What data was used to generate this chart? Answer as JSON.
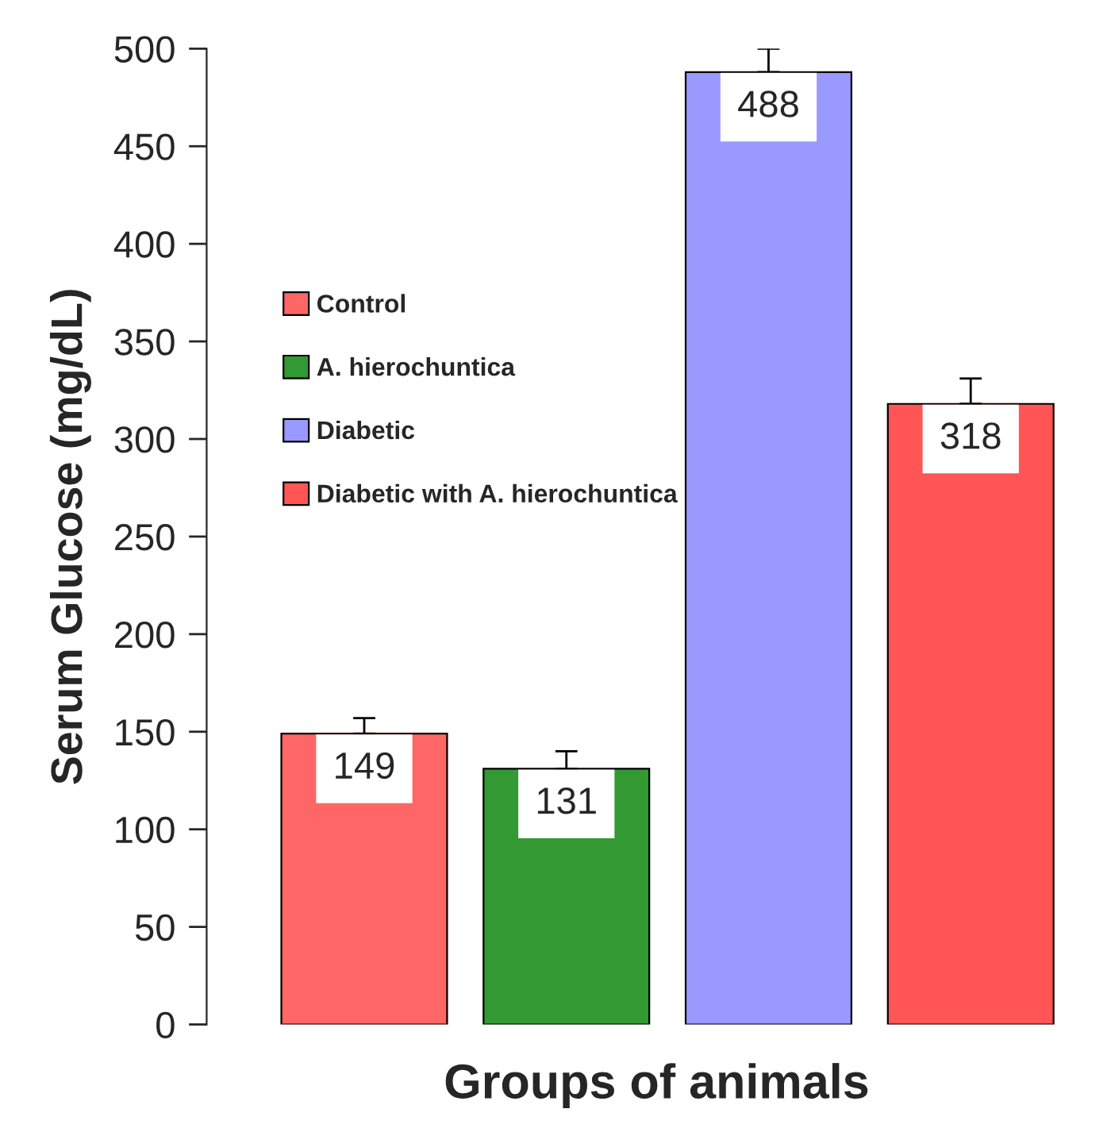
{
  "chart_data": {
    "type": "bar",
    "xlabel": "Groups of animals",
    "ylabel": "Serum Glucose (mg/dL)",
    "categories": [
      null
    ],
    "series": [
      {
        "name": "Control",
        "color": "#ff6666",
        "values": [
          149
        ],
        "errors": [
          [
            149,
            157
          ]
        ]
      },
      {
        "name": "A. hierochuntica",
        "color": "#339933",
        "values": [
          131
        ],
        "errors": [
          [
            131,
            140
          ]
        ]
      },
      {
        "name": "Diabetic",
        "color": "#9999ff",
        "values": [
          488
        ],
        "errors": [
          [
            488,
            500
          ]
        ]
      },
      {
        "name": "Diabetic with A. hierochuntica",
        "color": "#ff5555",
        "values": [
          318
        ],
        "errors": [
          [
            318,
            331
          ]
        ]
      }
    ],
    "ylim": [
      0,
      500
    ],
    "yticks": [
      0,
      50,
      100,
      150,
      200,
      250,
      300,
      350,
      400,
      450,
      500
    ],
    "data_labels": true,
    "legend": "left",
    "grid": false
  }
}
